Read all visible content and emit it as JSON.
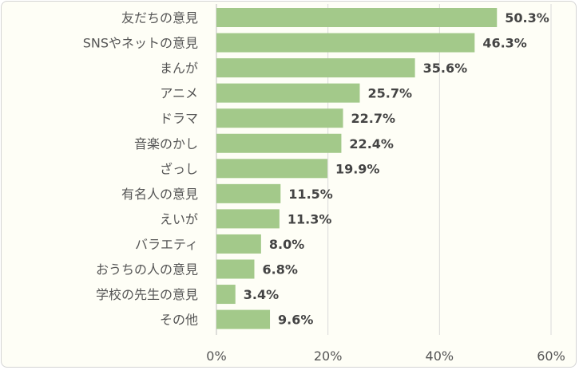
{
  "chart_data": {
    "type": "bar",
    "orientation": "horizontal",
    "categories": [
      "友だちの意見",
      "SNSやネットの意見",
      "まんが",
      "アニメ",
      "ドラマ",
      "音楽のかし",
      "ざっし",
      "有名人の意見",
      "えいが",
      "バラエティ",
      "おうちの人の意見",
      "学校の先生の意見",
      "その他"
    ],
    "values": [
      50.3,
      46.3,
      35.6,
      25.7,
      22.7,
      22.4,
      19.9,
      11.5,
      11.3,
      8.0,
      6.8,
      3.4,
      9.6
    ],
    "value_labels": [
      "50.3%",
      "46.3%",
      "35.6%",
      "25.7%",
      "22.7%",
      "22.4%",
      "19.9%",
      "11.5%",
      "11.3%",
      "8.0%",
      "6.8%",
      "3.4%",
      "9.6%"
    ],
    "xlim": [
      0,
      60
    ],
    "x_ticks": [
      0,
      20,
      40,
      60
    ],
    "x_tick_labels": [
      "0%",
      "20%",
      "40%",
      "60%"
    ],
    "grid": true,
    "title": "",
    "xlabel": "",
    "ylabel": "",
    "colors": {
      "bar": "#a3c98a",
      "background": "#fefef6",
      "grid": "#d9d9d9"
    }
  }
}
